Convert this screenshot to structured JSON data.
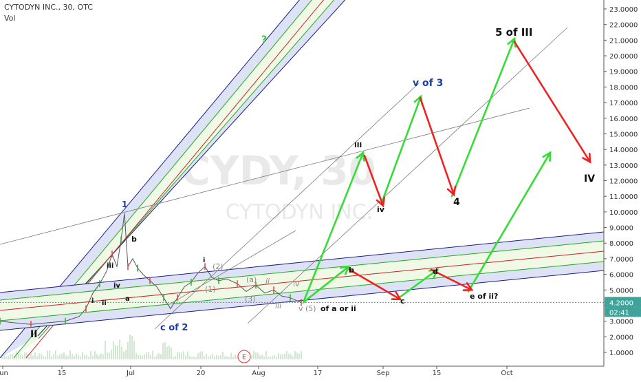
{
  "header": {
    "title": "CYTODYN INC., 30, OTC",
    "volume_label": "Vol"
  },
  "watermark": {
    "ticker": "CYDY, 30",
    "company": "CYTODYN INC."
  },
  "colors": {
    "up_arrow": "#33dd33",
    "down_arrow": "#ee2222",
    "channel_outer": "#1a1a8c",
    "channel_mid": "#cc2222",
    "channel_inner": "#22aa22",
    "channel_fill": "#dde3f5",
    "price_label": "#3fa39a",
    "wave_black": "#111111",
    "wave_blue": "#1b3fa0",
    "wave_gray": "#888888"
  },
  "chart_data": {
    "type": "line",
    "title": "CYTODYN INC., 30, OTC",
    "x_ticks": [
      "Jun",
      "15",
      "Jul",
      "20",
      "Aug",
      "17",
      "Sep",
      "15",
      "Oct"
    ],
    "y_ticks": [
      "1.0000",
      "2.0000",
      "3.0000",
      "4.0000",
      "5.0000",
      "6.0000",
      "7.0000",
      "8.0000",
      "9.0000",
      "10.0000",
      "11.0000",
      "12.0000",
      "13.0000",
      "14.0000",
      "15.0000",
      "16.0000",
      "17.0000",
      "18.0000",
      "19.0000",
      "20.0000",
      "21.0000",
      "22.0000",
      "23.0000"
    ],
    "ylim": [
      0.5,
      23.5
    ],
    "current_price": "4.2000",
    "countdown": "02:41",
    "price_series": [
      {
        "x": 0,
        "y": 3.0
      },
      {
        "x": 20,
        "y": 2.9
      },
      {
        "x": 45,
        "y": 2.8
      },
      {
        "x": 70,
        "y": 2.9
      },
      {
        "x": 95,
        "y": 3.0
      },
      {
        "x": 115,
        "y": 3.3
      },
      {
        "x": 125,
        "y": 3.8
      },
      {
        "x": 135,
        "y": 4.8
      },
      {
        "x": 145,
        "y": 5.4
      },
      {
        "x": 155,
        "y": 6.2
      },
      {
        "x": 163,
        "y": 7.3
      },
      {
        "x": 170,
        "y": 6.5
      },
      {
        "x": 176,
        "y": 8.2
      },
      {
        "x": 181,
        "y": 9.9
      },
      {
        "x": 186,
        "y": 6.5
      },
      {
        "x": 193,
        "y": 7.0
      },
      {
        "x": 200,
        "y": 6.4
      },
      {
        "x": 208,
        "y": 6.0
      },
      {
        "x": 218,
        "y": 5.6
      },
      {
        "x": 228,
        "y": 5.2
      },
      {
        "x": 238,
        "y": 4.5
      },
      {
        "x": 248,
        "y": 3.8
      },
      {
        "x": 258,
        "y": 4.5
      },
      {
        "x": 268,
        "y": 5.2
      },
      {
        "x": 278,
        "y": 5.5
      },
      {
        "x": 288,
        "y": 6.1
      },
      {
        "x": 298,
        "y": 6.5
      },
      {
        "x": 308,
        "y": 5.8
      },
      {
        "x": 318,
        "y": 5.6
      },
      {
        "x": 330,
        "y": 5.7
      },
      {
        "x": 345,
        "y": 5.4
      },
      {
        "x": 358,
        "y": 4.9
      },
      {
        "x": 372,
        "y": 5.3
      },
      {
        "x": 385,
        "y": 4.8
      },
      {
        "x": 398,
        "y": 5.0
      },
      {
        "x": 410,
        "y": 4.6
      },
      {
        "x": 422,
        "y": 4.5
      },
      {
        "x": 432,
        "y": 4.3
      },
      {
        "x": 438,
        "y": 4.2
      }
    ],
    "up_arrows": [
      {
        "from": [
          441,
          4.2
        ],
        "to": [
          528,
          13.8
        ]
      },
      {
        "from": [
          441,
          4.2
        ],
        "to": [
          507,
          6.5
        ]
      },
      {
        "from": [
          555,
          10.6
        ],
        "to": [
          612,
          17.4
        ]
      },
      {
        "from": [
          577,
          4.4
        ],
        "to": [
          636,
          6.3
        ]
      },
      {
        "from": [
          657,
          11.0
        ],
        "to": [
          748,
          21.1
        ]
      },
      {
        "from": [
          681,
          4.9
        ],
        "to": [
          800,
          13.8
        ]
      }
    ],
    "down_arrows": [
      {
        "from": [
          508,
          6.3
        ],
        "to": [
          582,
          4.4
        ]
      },
      {
        "from": [
          530,
          13.6
        ],
        "to": [
          557,
          10.4
        ]
      },
      {
        "from": [
          611,
          17.3
        ],
        "to": [
          660,
          11.1
        ]
      },
      {
        "from": [
          627,
          6.3
        ],
        "to": [
          686,
          5.0
        ]
      },
      {
        "from": [
          748,
          20.9
        ],
        "to": [
          858,
          13.2
        ]
      }
    ],
    "wave_labels": {
      "five_of_iii": "5 of III",
      "v_of_3": "v of 3",
      "question": "?",
      "four": "4",
      "four_roman": "IV",
      "iii_top": "iii",
      "iv_lower": "iv",
      "b": "b",
      "c": "c",
      "d": "d",
      "e_of_ii": "e of ii?",
      "v5": "v (5)",
      "of_a_or_ii": "of a or ii",
      "one": "1",
      "b_left": "b",
      "a_left": "a",
      "iii_left": "iii",
      "iv_left": "iv",
      "i_left": "i",
      "ii_left": "ii",
      "two_roman": "II",
      "c_of_2": "c of 2",
      "i_mid": "i",
      "two_paren": "(2)",
      "one_paren": "(1)",
      "three_paren": "(3)",
      "iv_gray": "iv",
      "iii_gray": "iii",
      "ii_gray": "ii",
      "a_gray": "(a)",
      "earnings": "E"
    }
  }
}
